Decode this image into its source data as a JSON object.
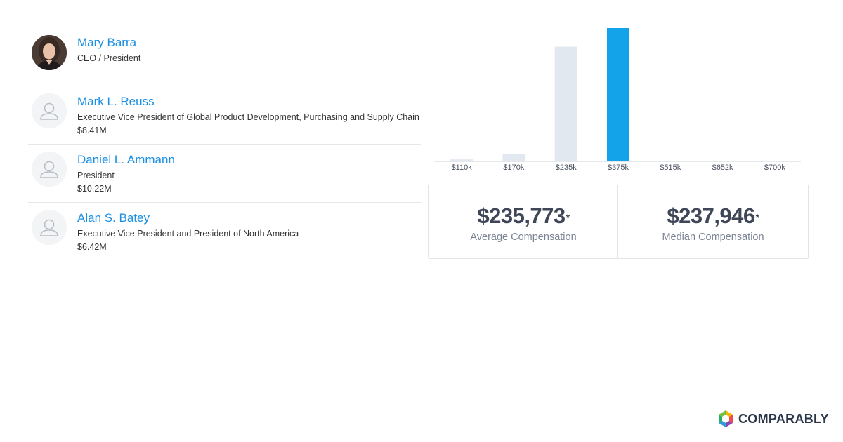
{
  "executives": [
    {
      "name": "Mary Barra",
      "title": "CEO / President",
      "compensation": "-",
      "avatar": "photo",
      "avatar_icon": "person-photo"
    },
    {
      "name": "Mark L. Reuss",
      "title": "Executive Vice President of Global Product Development, Purchasing and Supply Chain",
      "compensation": "$8.41M",
      "avatar": "placeholder",
      "avatar_icon": "user-placeholder-icon"
    },
    {
      "name": "Daniel L. Ammann",
      "title": "President",
      "compensation": "$10.22M",
      "avatar": "placeholder",
      "avatar_icon": "user-placeholder-icon"
    },
    {
      "name": "Alan S. Batey",
      "title": "Executive Vice President and President of North America",
      "compensation": "$6.42M",
      "avatar": "placeholder",
      "avatar_icon": "user-placeholder-icon"
    }
  ],
  "chart_data": {
    "type": "bar",
    "categories": [
      "$110k",
      "$170k",
      "$235k",
      "$375k",
      "$515k",
      "$652k",
      "$700k"
    ],
    "values": [
      1.5,
      5.5,
      86,
      100,
      0,
      0,
      0
    ],
    "highlight_index": 3,
    "ylim": [
      0,
      100
    ],
    "grid": false,
    "colors": {
      "bar": "#e1e8ef",
      "highlight": "#12a3e8",
      "baseline": "#e6e9ec"
    }
  },
  "stats": {
    "average": {
      "value": "$235,773",
      "mark": "*",
      "label": "Average Compensation"
    },
    "median": {
      "value": "$237,946",
      "mark": "*",
      "label": "Median Compensation"
    }
  },
  "brand": {
    "name": "COMPARABLY",
    "logo_icon": "comparably-logo-icon"
  }
}
